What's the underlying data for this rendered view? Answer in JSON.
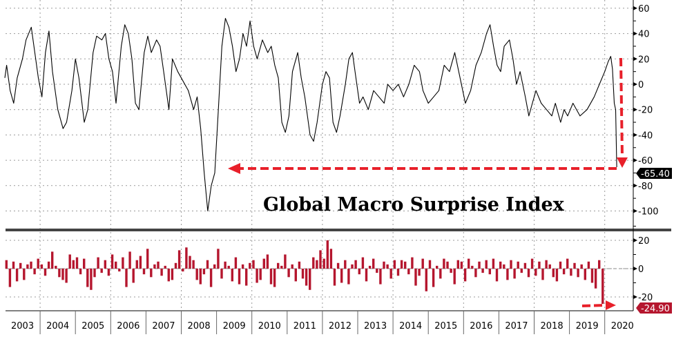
{
  "chart_data": [
    {
      "type": "line",
      "title": "Global Macro Surprise Index",
      "ylim": [
        -110,
        65
      ],
      "yticks": [
        "60",
        "40",
        "20",
        "0",
        "-20",
        "-40",
        "-60",
        "-80",
        "-100"
      ],
      "ytick_values": [
        60,
        40,
        20,
        0,
        -20,
        -40,
        -60,
        -80,
        -100
      ],
      "last_value_label": "-65.40",
      "line_color": "#000000",
      "annotation_color": "#e8202a",
      "points": [
        [
          2003.0,
          5
        ],
        [
          2003.05,
          15
        ],
        [
          2003.15,
          -5
        ],
        [
          2003.25,
          -15
        ],
        [
          2003.35,
          5
        ],
        [
          2003.5,
          20
        ],
        [
          2003.6,
          35
        ],
        [
          2003.75,
          45
        ],
        [
          2003.85,
          25
        ],
        [
          2003.95,
          5
        ],
        [
          2004.05,
          -10
        ],
        [
          2004.15,
          25
        ],
        [
          2004.25,
          42
        ],
        [
          2004.35,
          10
        ],
        [
          2004.5,
          -20
        ],
        [
          2004.65,
          -35
        ],
        [
          2004.75,
          -30
        ],
        [
          2004.9,
          -5
        ],
        [
          2005.0,
          20
        ],
        [
          2005.1,
          5
        ],
        [
          2005.25,
          -30
        ],
        [
          2005.35,
          -20
        ],
        [
          2005.5,
          25
        ],
        [
          2005.6,
          38
        ],
        [
          2005.75,
          35
        ],
        [
          2005.85,
          40
        ],
        [
          2005.95,
          20
        ],
        [
          2006.05,
          10
        ],
        [
          2006.15,
          -15
        ],
        [
          2006.3,
          30
        ],
        [
          2006.4,
          47
        ],
        [
          2006.5,
          40
        ],
        [
          2006.6,
          20
        ],
        [
          2006.7,
          -15
        ],
        [
          2006.8,
          -20
        ],
        [
          2006.95,
          25
        ],
        [
          2007.05,
          38
        ],
        [
          2007.15,
          25
        ],
        [
          2007.3,
          35
        ],
        [
          2007.4,
          30
        ],
        [
          2007.5,
          10
        ],
        [
          2007.65,
          -20
        ],
        [
          2007.75,
          20
        ],
        [
          2007.9,
          10
        ],
        [
          2008.0,
          5
        ],
        [
          2008.2,
          -5
        ],
        [
          2008.35,
          -20
        ],
        [
          2008.45,
          -10
        ],
        [
          2008.55,
          -35
        ],
        [
          2008.65,
          -70
        ],
        [
          2008.75,
          -100
        ],
        [
          2008.85,
          -80
        ],
        [
          2008.95,
          -70
        ],
        [
          2009.05,
          -20
        ],
        [
          2009.15,
          30
        ],
        [
          2009.25,
          52
        ],
        [
          2009.35,
          45
        ],
        [
          2009.45,
          30
        ],
        [
          2009.55,
          10
        ],
        [
          2009.65,
          20
        ],
        [
          2009.75,
          40
        ],
        [
          2009.85,
          30
        ],
        [
          2009.95,
          50
        ],
        [
          2010.05,
          30
        ],
        [
          2010.15,
          20
        ],
        [
          2010.3,
          35
        ],
        [
          2010.45,
          25
        ],
        [
          2010.55,
          30
        ],
        [
          2010.65,
          15
        ],
        [
          2010.75,
          5
        ],
        [
          2010.85,
          -30
        ],
        [
          2010.95,
          -38
        ],
        [
          2011.05,
          -25
        ],
        [
          2011.15,
          10
        ],
        [
          2011.3,
          25
        ],
        [
          2011.4,
          5
        ],
        [
          2011.5,
          -10
        ],
        [
          2011.65,
          -40
        ],
        [
          2011.75,
          -45
        ],
        [
          2011.85,
          -30
        ],
        [
          2012.0,
          0
        ],
        [
          2012.1,
          10
        ],
        [
          2012.2,
          5
        ],
        [
          2012.3,
          -30
        ],
        [
          2012.4,
          -38
        ],
        [
          2012.5,
          -25
        ],
        [
          2012.65,
          0
        ],
        [
          2012.75,
          20
        ],
        [
          2012.85,
          25
        ],
        [
          2012.95,
          5
        ],
        [
          2013.05,
          -15
        ],
        [
          2013.15,
          -10
        ],
        [
          2013.3,
          -20
        ],
        [
          2013.45,
          -5
        ],
        [
          2013.6,
          -10
        ],
        [
          2013.75,
          -15
        ],
        [
          2013.85,
          0
        ],
        [
          2014.0,
          -5
        ],
        [
          2014.15,
          0
        ],
        [
          2014.3,
          -10
        ],
        [
          2014.45,
          0
        ],
        [
          2014.6,
          15
        ],
        [
          2014.75,
          10
        ],
        [
          2014.85,
          -5
        ],
        [
          2015.0,
          -15
        ],
        [
          2015.15,
          -10
        ],
        [
          2015.3,
          -5
        ],
        [
          2015.45,
          15
        ],
        [
          2015.6,
          10
        ],
        [
          2015.75,
          25
        ],
        [
          2015.9,
          5
        ],
        [
          2016.05,
          -15
        ],
        [
          2016.2,
          -5
        ],
        [
          2016.35,
          15
        ],
        [
          2016.5,
          25
        ],
        [
          2016.65,
          40
        ],
        [
          2016.75,
          47
        ],
        [
          2016.85,
          30
        ],
        [
          2016.95,
          15
        ],
        [
          2017.05,
          10
        ],
        [
          2017.15,
          30
        ],
        [
          2017.3,
          35
        ],
        [
          2017.4,
          20
        ],
        [
          2017.5,
          0
        ],
        [
          2017.6,
          10
        ],
        [
          2017.75,
          -10
        ],
        [
          2017.85,
          -25
        ],
        [
          2017.95,
          -15
        ],
        [
          2018.05,
          -5
        ],
        [
          2018.2,
          -15
        ],
        [
          2018.35,
          -20
        ],
        [
          2018.5,
          -25
        ],
        [
          2018.6,
          -15
        ],
        [
          2018.75,
          -30
        ],
        [
          2018.85,
          -20
        ],
        [
          2018.95,
          -25
        ],
        [
          2019.1,
          -15
        ],
        [
          2019.3,
          -25
        ],
        [
          2019.5,
          -20
        ],
        [
          2019.7,
          -10
        ],
        [
          2019.85,
          0
        ],
        [
          2020.0,
          10
        ],
        [
          2020.1,
          18
        ],
        [
          2020.17,
          22
        ],
        [
          2020.22,
          12
        ],
        [
          2020.27,
          -15
        ],
        [
          2020.31,
          -20
        ],
        [
          2020.34,
          -65.4
        ]
      ]
    },
    {
      "type": "bar",
      "ylim": [
        -27,
        25
      ],
      "yticks": [
        "20",
        "0",
        "-20"
      ],
      "ytick_values": [
        20,
        0,
        -20
      ],
      "last_value_label": "-24.90",
      "bar_color": "#b5162e",
      "x_start": 2003.05,
      "x_step": 0.1,
      "values": [
        6,
        -13,
        5,
        -9,
        4,
        -8,
        3,
        5,
        -4,
        7,
        3,
        -5,
        5,
        12,
        2,
        -6,
        -8,
        -10,
        10,
        6,
        8,
        -4,
        7,
        -13,
        -15,
        -6,
        8,
        -3,
        6,
        -5,
        10,
        5,
        -2,
        8,
        -13,
        12,
        -10,
        6,
        9,
        -4,
        14,
        -6,
        3,
        5,
        -5,
        2,
        -9,
        -8,
        4,
        13,
        -2,
        15,
        9,
        6,
        -8,
        -11,
        -4,
        6,
        -13,
        3,
        14,
        -7,
        5,
        2,
        -9,
        8,
        -11,
        3,
        -12,
        4,
        6,
        -10,
        -8,
        7,
        10,
        -11,
        -13,
        4,
        2,
        10,
        -6,
        3,
        -9,
        5,
        -7,
        -12,
        -15,
        8,
        6,
        13,
        7,
        20,
        14,
        -12,
        4,
        -10,
        6,
        -11,
        3,
        6,
        -4,
        8,
        -9,
        2,
        7,
        -3,
        -11,
        5,
        3,
        -7,
        6,
        -5,
        6,
        5,
        -4,
        8,
        -12,
        -5,
        7,
        -16,
        6,
        -13,
        2,
        -7,
        7,
        5,
        -3,
        -11,
        6,
        5,
        -9,
        7,
        2,
        -6,
        5,
        -3,
        6,
        -4,
        7,
        -9,
        5,
        3,
        -8,
        6,
        -7,
        5,
        -3,
        4,
        -6,
        7,
        -5,
        5,
        -8,
        6,
        3,
        -6,
        -9,
        5,
        -4,
        7,
        -5,
        4,
        -6,
        3,
        -8,
        5,
        -10,
        -14,
        6,
        -24.9
      ]
    }
  ],
  "x_axis": {
    "years": [
      "2003",
      "2004",
      "2005",
      "2006",
      "2007",
      "2008",
      "2009",
      "2010",
      "2011",
      "2012",
      "2013",
      "2014",
      "2015",
      "2016",
      "2017",
      "2018",
      "2019",
      "2020"
    ]
  }
}
